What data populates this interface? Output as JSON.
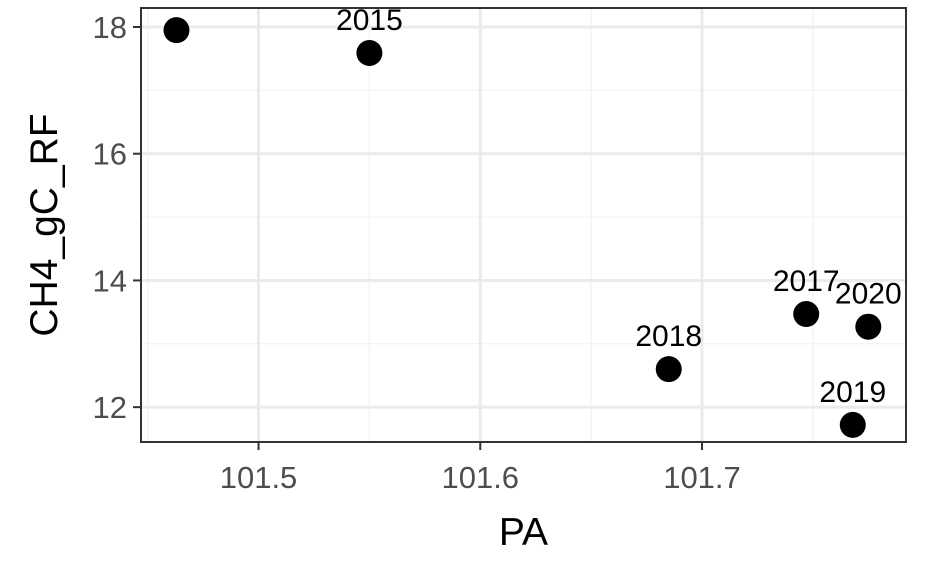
{
  "chart_data": {
    "type": "scatter",
    "xlabel": "PA",
    "ylabel": "CH4_gC_RF",
    "xlim": [
      101.447,
      101.792
    ],
    "ylim": [
      11.45,
      18.3
    ],
    "x_ticks": [
      101.5,
      101.6,
      101.7
    ],
    "x_tick_labels": [
      "101.5",
      "101.6",
      "101.7"
    ],
    "y_ticks": [
      12,
      14,
      16,
      18
    ],
    "y_tick_labels": [
      "12",
      "14",
      "16",
      "18"
    ],
    "grid": true,
    "legend": "none",
    "points": [
      {
        "x": 101.463,
        "y": 17.95,
        "label": ""
      },
      {
        "x": 101.55,
        "y": 17.59,
        "label": "2015"
      },
      {
        "x": 101.685,
        "y": 12.6,
        "label": "2018"
      },
      {
        "x": 101.747,
        "y": 13.47,
        "label": "2017"
      },
      {
        "x": 101.768,
        "y": 11.72,
        "label": "2019"
      },
      {
        "x": 101.775,
        "y": 13.27,
        "label": "2020"
      }
    ],
    "colors": {
      "point": "#000000",
      "panel_border": "#333333",
      "grid_major": "#ebebeb",
      "grid_minor": "#f4f4f4",
      "tick_text": "#4d4d4d"
    }
  }
}
